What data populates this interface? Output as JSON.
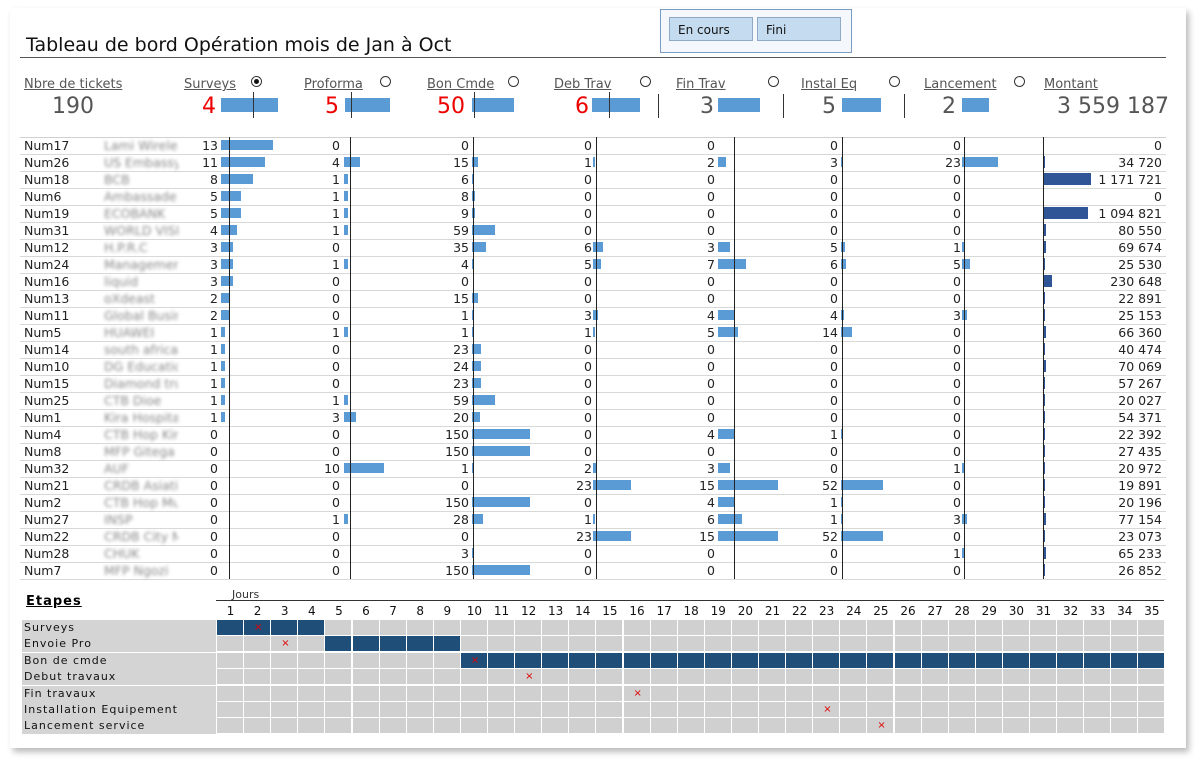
{
  "header": {
    "title": "Tableau de bord Opération mois de  Jan à Oct",
    "buttons": [
      "En cours",
      "Fini"
    ]
  },
  "kpis": [
    {
      "label": "Nbre de tickets",
      "value": "190",
      "color": "#555555",
      "radio": null,
      "bar": 0
    },
    {
      "label": "Surveys",
      "value": "4",
      "color": "#ee0000",
      "radio": true,
      "bar": 0.95
    },
    {
      "label": "Proforma",
      "value": "5",
      "color": "#ee0000",
      "radio": false,
      "bar": 0.75
    },
    {
      "label": "Bon Cmde",
      "value": "50",
      "color": "#ee0000",
      "radio": false,
      "bar": 0.7
    },
    {
      "label": "Deb Trav",
      "value": "6",
      "color": "#ee0000",
      "radio": false,
      "bar": 0.8
    },
    {
      "label": "Fin Trav",
      "value": "3",
      "color": "#555555",
      "radio": false,
      "bar": 0.7
    },
    {
      "label": "Instal Eq",
      "value": "5",
      "color": "#555555",
      "radio": false,
      "bar": 0.65
    },
    {
      "label": "Lancement",
      "value": "2",
      "color": "#555555",
      "radio": false,
      "bar": 0.45
    },
    {
      "label": "Montant",
      "value": "3 559 187",
      "color": "#555555",
      "radio": null,
      "bar": 0
    }
  ],
  "columns_max": [
    13,
    10,
    150,
    23,
    15,
    52,
    23
  ],
  "montant_max": 1171721,
  "rows": [
    {
      "num": "Num17",
      "name": "Lami Wireless",
      "v": [
        13,
        0,
        0,
        0,
        0,
        0,
        0
      ],
      "m": "0",
      "mv": 0
    },
    {
      "num": "Num26",
      "name": "US Embassy",
      "v": [
        11,
        4,
        15,
        1,
        2,
        3,
        23
      ],
      "m": "34 720",
      "mv": 34720
    },
    {
      "num": "Num18",
      "name": "BCB",
      "v": [
        8,
        1,
        6,
        0,
        0,
        0,
        0
      ],
      "m": "1 171 721",
      "mv": 1171721
    },
    {
      "num": "Num6",
      "name": "Ambassade",
      "v": [
        5,
        1,
        8,
        0,
        0,
        0,
        0
      ],
      "m": "0",
      "mv": 0
    },
    {
      "num": "Num19",
      "name": "ECOBANK",
      "v": [
        5,
        1,
        9,
        0,
        0,
        0,
        0
      ],
      "m": "1 094 821",
      "mv": 1094821
    },
    {
      "num": "Num31",
      "name": "WORLD VISION",
      "v": [
        4,
        1,
        59,
        0,
        0,
        0,
        0
      ],
      "m": "80 550",
      "mv": 80550
    },
    {
      "num": "Num12",
      "name": "H.P.R.C",
      "v": [
        3,
        0,
        35,
        6,
        3,
        5,
        1
      ],
      "m": "69 674",
      "mv": 69674
    },
    {
      "num": "Num24",
      "name": "Management",
      "v": [
        3,
        1,
        4,
        5,
        7,
        6,
        5
      ],
      "m": "25 530",
      "mv": 25530
    },
    {
      "num": "Num16",
      "name": "liquid",
      "v": [
        3,
        0,
        0,
        0,
        0,
        0,
        0
      ],
      "m": "230 648",
      "mv": 230648
    },
    {
      "num": "Num13",
      "name": "oXdeast",
      "v": [
        2,
        0,
        15,
        0,
        0,
        0,
        0
      ],
      "m": "22 891",
      "mv": 22891
    },
    {
      "num": "Num11",
      "name": "Global Business",
      "v": [
        2,
        0,
        1,
        3,
        4,
        4,
        3
      ],
      "m": "25 153",
      "mv": 25153
    },
    {
      "num": "Num5",
      "name": "HUAWEI",
      "v": [
        1,
        1,
        1,
        1,
        5,
        14,
        0
      ],
      "m": "66 360",
      "mv": 66360
    },
    {
      "num": "Num14",
      "name": "south africa",
      "v": [
        1,
        0,
        23,
        0,
        0,
        0,
        0
      ],
      "m": "40 474",
      "mv": 40474
    },
    {
      "num": "Num10",
      "name": "DG Education",
      "v": [
        1,
        0,
        24,
        0,
        0,
        0,
        0
      ],
      "m": "70 069",
      "mv": 70069
    },
    {
      "num": "Num15",
      "name": "Diamond trust",
      "v": [
        1,
        0,
        23,
        0,
        0,
        0,
        0
      ],
      "m": "57 267",
      "mv": 57267
    },
    {
      "num": "Num25",
      "name": "CTB Dioe",
      "v": [
        1,
        1,
        59,
        0,
        0,
        0,
        0
      ],
      "m": "20 027",
      "mv": 20027
    },
    {
      "num": "Num1",
      "name": "Kira Hospital",
      "v": [
        1,
        3,
        20,
        0,
        0,
        0,
        0
      ],
      "m": "54 371",
      "mv": 54371
    },
    {
      "num": "Num4",
      "name": "CTB Hop Kira",
      "v": [
        0,
        0,
        150,
        0,
        4,
        1,
        0
      ],
      "m": "22 392",
      "mv": 22392
    },
    {
      "num": "Num8",
      "name": "MFP Gitega",
      "v": [
        0,
        0,
        150,
        0,
        0,
        0,
        0
      ],
      "m": "27 435",
      "mv": 27435
    },
    {
      "num": "Num32",
      "name": "AUF",
      "v": [
        0,
        10,
        1,
        2,
        3,
        0,
        1
      ],
      "m": "20 972",
      "mv": 20972
    },
    {
      "num": "Num21",
      "name": "CRDB Asiatic",
      "v": [
        0,
        0,
        0,
        23,
        15,
        52,
        0
      ],
      "m": "19 891",
      "mv": 19891
    },
    {
      "num": "Num2",
      "name": "CTB Hop Muy",
      "v": [
        0,
        0,
        150,
        0,
        4,
        1,
        0
      ],
      "m": "20 196",
      "mv": 20196
    },
    {
      "num": "Num27",
      "name": "INSP",
      "v": [
        0,
        1,
        28,
        1,
        6,
        1,
        3
      ],
      "m": "77 154",
      "mv": 77154
    },
    {
      "num": "Num22",
      "name": "CRDB City Market",
      "v": [
        0,
        0,
        0,
        23,
        15,
        52,
        0
      ],
      "m": "23 073",
      "mv": 23073
    },
    {
      "num": "Num28",
      "name": "CHUK",
      "v": [
        0,
        0,
        3,
        0,
        0,
        0,
        1
      ],
      "m": "65 233",
      "mv": 65233
    },
    {
      "num": "Num7",
      "name": "MFP Ngozi",
      "v": [
        0,
        0,
        150,
        0,
        0,
        0,
        0
      ],
      "m": "26 852",
      "mv": 26852
    }
  ],
  "gantt": {
    "title": "Etapes",
    "jours_label": "Jours",
    "days": [
      "1",
      "2",
      "3",
      "4",
      "5",
      "6",
      "7",
      "8",
      "9",
      "10",
      "11",
      "12",
      "13",
      "14",
      "15",
      "16",
      "17",
      "18",
      "19",
      "20",
      "21",
      "22",
      "23",
      "24",
      "25",
      "26",
      "27",
      "28",
      "29",
      "30",
      "31",
      "32",
      "33",
      "34",
      "35"
    ],
    "stages": [
      {
        "label": "Surveys",
        "start": 1,
        "end": 4,
        "x": 2
      },
      {
        "label": "Envoie Pro",
        "start": 5,
        "end": 9,
        "x": 3
      },
      {
        "label": "Bon de cmde",
        "start": 10,
        "end": 35,
        "x": 10
      },
      {
        "label": "Debut travaux",
        "start": 0,
        "end": 0,
        "x": 12
      },
      {
        "label": "Fin travaux",
        "start": 0,
        "end": 0,
        "x": 16
      },
      {
        "label": "Installation Equipement",
        "start": 0,
        "end": 0,
        "x": 23
      },
      {
        "label": "Lancement service",
        "start": 0,
        "end": 0,
        "x": 25
      }
    ]
  }
}
